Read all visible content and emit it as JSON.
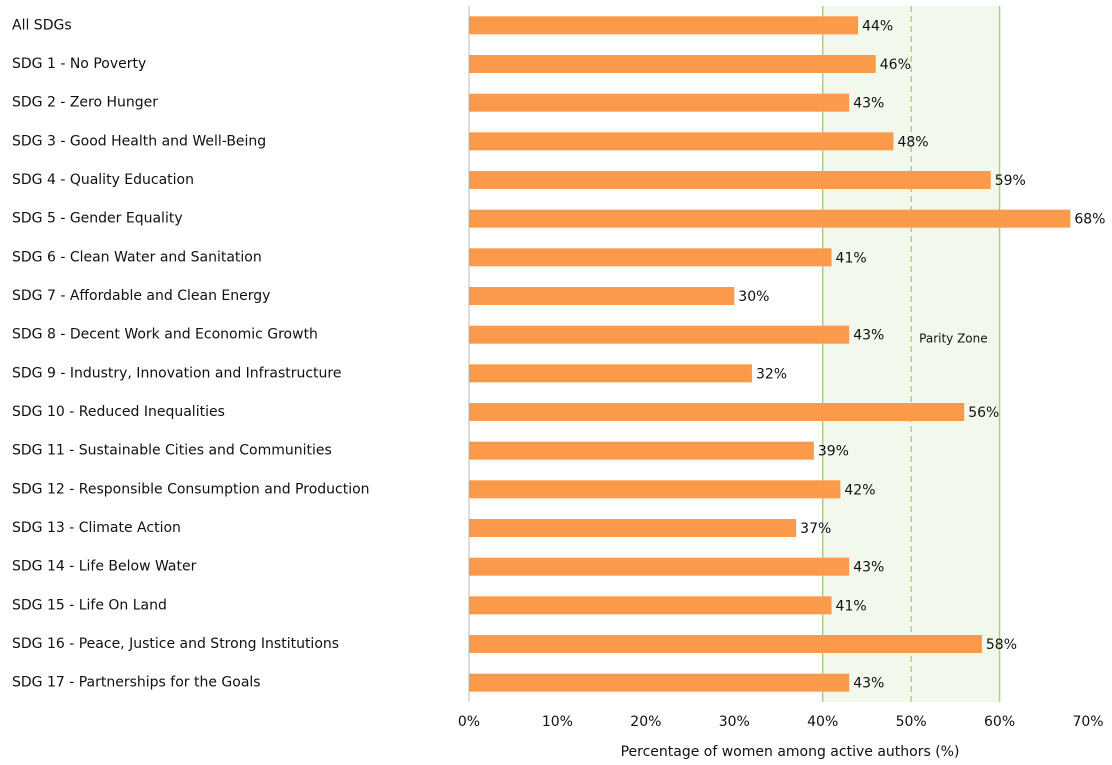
{
  "chart_data": {
    "type": "bar",
    "orientation": "horizontal",
    "x_label": "Percentage of women among active authors (%)",
    "categories": [
      "All SDGs",
      "SDG 1 - No Poverty",
      "SDG 2 - Zero Hunger",
      "SDG 3 - Good Health and Well-Being",
      "SDG 4 - Quality Education",
      "SDG 5 - Gender Equality",
      "SDG 6 - Clean Water and Sanitation",
      "SDG 7 - Affordable and Clean Energy",
      "SDG 8 - Decent Work and Economic Growth",
      "SDG 9 - Industry, Innovation and Infrastructure",
      "SDG 10 - Reduced Inequalities",
      "SDG 11 - Sustainable Cities and Communities",
      "SDG 12 - Responsible Consumption and Production",
      "SDG 13 - Climate Action",
      "SDG 14 - Life Below Water",
      "SDG 15 - Life On Land",
      "SDG 16 - Peace, Justice and Strong Institutions",
      "SDG 17 - Partnerships for the Goals"
    ],
    "values": [
      44,
      46,
      43,
      48,
      59,
      68,
      41,
      30,
      43,
      32,
      56,
      39,
      42,
      37,
      43,
      41,
      58,
      43
    ],
    "value_labels": [
      "44%",
      "46%",
      "43%",
      "48%",
      "59%",
      "68%",
      "41%",
      "30%",
      "43%",
      "32%",
      "56%",
      "39%",
      "42%",
      "37%",
      "43%",
      "41%",
      "58%",
      "43%"
    ],
    "color": "#fb9a4b",
    "xlim": [
      0,
      70
    ],
    "xticks": [
      {
        "value": 0,
        "label": "0%"
      },
      {
        "value": 10,
        "label": "10%"
      },
      {
        "value": 20,
        "label": "20%"
      },
      {
        "value": 30,
        "label": "30%"
      },
      {
        "value": 40,
        "label": "40%"
      },
      {
        "value": 50,
        "label": "50%"
      },
      {
        "value": 60,
        "label": "60%"
      },
      {
        "value": 70,
        "label": "70%"
      }
    ],
    "parity_zone": {
      "label": "Parity Zone",
      "range": [
        40,
        60
      ],
      "center": 50,
      "color": "#a9d18e"
    }
  }
}
